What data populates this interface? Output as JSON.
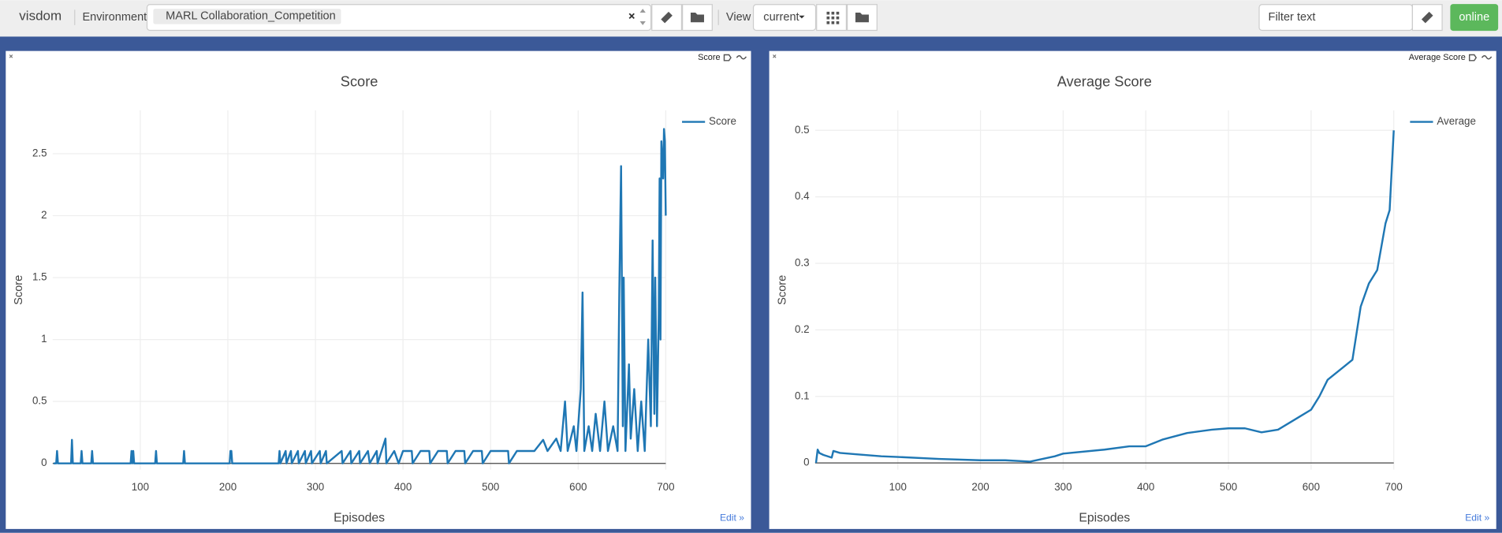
{
  "toolbar": {
    "brand": "visdom",
    "env_label": "Environment",
    "env_value": "MARL Collaboration_Competition",
    "view_label": "View",
    "view_value": "current",
    "filter_placeholder": "Filter text",
    "status": "online"
  },
  "chart_data": [
    {
      "type": "line",
      "panel_label": "Score",
      "title": "Score",
      "x_label": "Episodes",
      "y_label": "Score",
      "edit_link": "Edit »",
      "xlim": [
        0,
        700
      ],
      "xticks": [
        100,
        200,
        300,
        400,
        500,
        600,
        700
      ],
      "ylim": [
        -0.05,
        2.85
      ],
      "yticks": [
        0,
        0.5,
        1,
        1.5,
        2,
        2.5
      ],
      "grid": true,
      "legend": "top-right",
      "series": [
        {
          "name": "Score",
          "color": "#1f77b4",
          "x": [
            1,
            4,
            5,
            6,
            21,
            22,
            23,
            32,
            33,
            34,
            44,
            45,
            46,
            89,
            90,
            91,
            92,
            93,
            117,
            118,
            119,
            149,
            150,
            151,
            202,
            203,
            204,
            205,
            258,
            259,
            260,
            266,
            267,
            272,
            273,
            280,
            281,
            288,
            289,
            295,
            296,
            305,
            306,
            312,
            313,
            330,
            331,
            340,
            341,
            350,
            351,
            360,
            362,
            370,
            371,
            380,
            381,
            390,
            395,
            400,
            410,
            411,
            420,
            430,
            431,
            440,
            450,
            451,
            460,
            470,
            471,
            480,
            490,
            491,
            500,
            510,
            520,
            521,
            530,
            540,
            550,
            560,
            565,
            575,
            580,
            585,
            588,
            595,
            598,
            603,
            605,
            607,
            612,
            616,
            620,
            625,
            630,
            634,
            640,
            645,
            647,
            649,
            651,
            652,
            654,
            658,
            660,
            664,
            668,
            672,
            676,
            680,
            683,
            685,
            687,
            688,
            690,
            692,
            693,
            694,
            695,
            697,
            698,
            699,
            700
          ],
          "values": [
            0,
            0,
            0.1,
            0,
            0,
            0.19,
            0,
            0,
            0.1,
            0,
            0,
            0.1,
            0,
            0,
            0.1,
            0,
            0.1,
            0,
            0,
            0.1,
            0,
            0,
            0.1,
            0,
            0,
            0.1,
            0.1,
            0,
            0,
            0.1,
            0,
            0.1,
            0,
            0.1,
            0,
            0.1,
            0,
            0.1,
            0,
            0.1,
            0,
            0.1,
            0,
            0.1,
            0,
            0.1,
            0,
            0.1,
            0,
            0.1,
            0,
            0.1,
            0,
            0.1,
            0,
            0.2,
            0,
            0.1,
            0,
            0.1,
            0.1,
            0,
            0.1,
            0.1,
            0,
            0.1,
            0.1,
            0,
            0.1,
            0.1,
            0,
            0.1,
            0.1,
            0,
            0.1,
            0.1,
            0.1,
            0,
            0.1,
            0.1,
            0.1,
            0.19,
            0.1,
            0.2,
            0.1,
            0.5,
            0.1,
            0.3,
            0.1,
            0.6,
            1.38,
            0.1,
            0.3,
            0.1,
            0.4,
            0.1,
            0.5,
            0.1,
            0.3,
            0.1,
            1.4,
            2.4,
            0.3,
            1.5,
            0.1,
            0.8,
            0.2,
            0.6,
            0.1,
            0.5,
            0.1,
            1.0,
            0.3,
            1.8,
            0.4,
            1.5,
            0.3,
            1.2,
            2.3,
            1.0,
            2.6,
            2.3,
            2.7,
            2.6,
            2.0
          ]
        }
      ]
    },
    {
      "type": "line",
      "panel_label": "Average Score",
      "title": "Average Score",
      "x_label": "Episodes",
      "y_label": "Score",
      "edit_link": "Edit »",
      "xlim": [
        0,
        700
      ],
      "xticks": [
        100,
        200,
        300,
        400,
        500,
        600,
        700
      ],
      "ylim": [
        -0.01,
        0.53
      ],
      "yticks": [
        0,
        0.1,
        0.2,
        0.3,
        0.4,
        0.5
      ],
      "grid": true,
      "legend": "top-right",
      "series": [
        {
          "name": "Average",
          "color": "#1f77b4",
          "x": [
            1,
            3,
            5,
            10,
            20,
            22,
            30,
            50,
            80,
            100,
            150,
            200,
            230,
            260,
            290,
            300,
            350,
            380,
            400,
            420,
            450,
            480,
            500,
            520,
            540,
            560,
            580,
            600,
            610,
            620,
            640,
            650,
            660,
            670,
            680,
            690,
            695,
            700
          ],
          "values": [
            0,
            0.02,
            0.015,
            0.012,
            0.008,
            0.018,
            0.015,
            0.013,
            0.01,
            0.009,
            0.006,
            0.004,
            0.004,
            0.002,
            0.01,
            0.014,
            0.02,
            0.025,
            0.025,
            0.035,
            0.045,
            0.05,
            0.052,
            0.052,
            0.046,
            0.05,
            0.065,
            0.08,
            0.1,
            0.125,
            0.145,
            0.155,
            0.235,
            0.27,
            0.29,
            0.36,
            0.38,
            0.5
          ]
        }
      ]
    }
  ]
}
